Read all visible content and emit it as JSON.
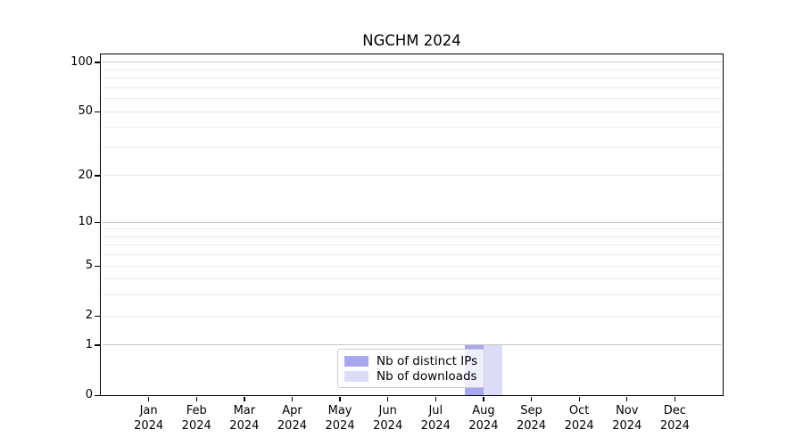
{
  "title": "NGCHM 2024",
  "chart_data": {
    "type": "bar",
    "title": "NGCHM 2024",
    "categories": [
      "Jan 2024",
      "Feb 2024",
      "Mar 2024",
      "Apr 2024",
      "May 2024",
      "Jun 2024",
      "Jul 2024",
      "Aug 2024",
      "Sep 2024",
      "Oct 2024",
      "Nov 2024",
      "Dec 2024"
    ],
    "series": [
      {
        "name": "Nb of distinct IPs",
        "color": "#a8a8ee",
        "values": [
          0,
          0,
          0,
          0,
          0,
          0,
          0,
          1,
          0,
          0,
          0,
          0
        ]
      },
      {
        "name": "Nb of downloads",
        "color": "#dcdcf8",
        "values": [
          0,
          0,
          0,
          0,
          0,
          0,
          0,
          1,
          0,
          0,
          0,
          0
        ]
      }
    ],
    "xlabel": "",
    "ylabel": "",
    "yscale": "log1p",
    "ylim": [
      0,
      112
    ],
    "yticks": [
      100,
      50,
      20,
      10,
      5,
      2,
      1,
      0
    ],
    "grid_major": [
      1,
      10,
      100
    ],
    "grid_minor": [
      2,
      3,
      4,
      5,
      6,
      7,
      8,
      9,
      20,
      30,
      40,
      50,
      60,
      70,
      80,
      90
    ],
    "grid": "horizontal",
    "legend_position": "lower center"
  },
  "colors": {
    "background": "#ffffff",
    "axis": "#000000",
    "grid_major": "#c6c6c6",
    "grid_minor": "#ebebeb",
    "legend_border": "#cccccc",
    "bar_distinct_ips": "#a8a8ee",
    "bar_downloads": "#dcdcf8"
  }
}
